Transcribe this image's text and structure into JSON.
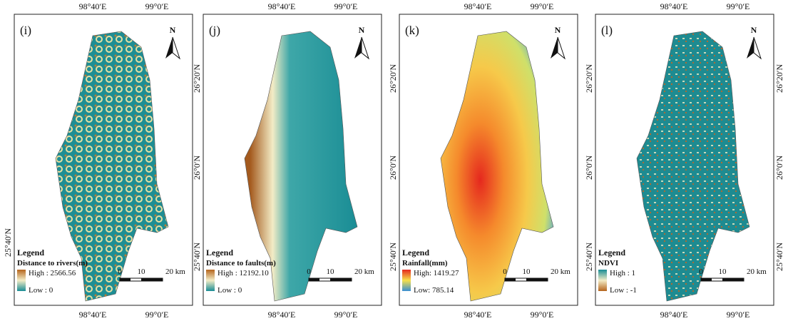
{
  "panels": [
    {
      "label": "(i)",
      "top_lon": [
        "98°40′E",
        "99°0′E"
      ],
      "bottom_lon": [
        "98°40′E",
        "99°0′E"
      ],
      "lat_left": [
        "25°40′N"
      ],
      "north": "N",
      "legend": {
        "title": "Legend",
        "field": "Distance to rivers(m)",
        "high": "High : 2566.56",
        "low": "Low : 0"
      },
      "scale": [
        "0",
        "10",
        "20 km"
      ]
    },
    {
      "label": "(j)",
      "top_lon": [
        "98°40′E",
        "99°0′E"
      ],
      "bottom_lon": [
        "98°40′E",
        "99°0′E"
      ],
      "lat_left": [
        "26°20′N",
        "26°0′N",
        "25°40′N"
      ],
      "north": "N",
      "legend": {
        "title": "Legend",
        "field": "Distance to faults(m)",
        "high": "High : 12192.10",
        "low": "Low : 0"
      },
      "scale": [
        "0",
        "10",
        "20 km"
      ]
    },
    {
      "label": "(k)",
      "top_lon": [
        "98°40′E",
        "99°0′E"
      ],
      "bottom_lon": [
        "98°40′E",
        "99°0′E"
      ],
      "lat_left": [
        "26°20′N",
        "26°0′N",
        "25°40′N"
      ],
      "north": "N",
      "legend": {
        "title": "Legend",
        "field": "Rainfall(mm)",
        "high": "High: 1419.27",
        "low": "Low: 785.14"
      },
      "scale": [
        "0",
        "10",
        "20 km"
      ]
    },
    {
      "label": "(l)",
      "top_lon": [
        "98°40′E",
        "99°0′E"
      ],
      "bottom_lon": [
        "98°40′E",
        "99°0′E"
      ],
      "lat_left": [
        "26°20′N",
        "26°0′N",
        "25°40′N"
      ],
      "lat_right": [
        "26°20′N",
        "26°0′N",
        "25°40′N"
      ],
      "north": "N",
      "legend": {
        "title": "Legend",
        "field": "NDVI",
        "high": "High : 1",
        "low": "Low : -1"
      },
      "scale": [
        "0",
        "10",
        "20 km"
      ]
    }
  ]
}
